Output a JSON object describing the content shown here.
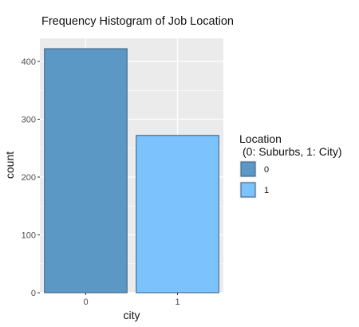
{
  "chart_data": {
    "type": "bar",
    "title": "Frequency Histogram of Job Location",
    "xlabel": "city",
    "ylabel": "count",
    "categories": [
      "0",
      "1"
    ],
    "values": [
      422,
      272
    ],
    "ylim": [
      0,
      440
    ],
    "yticks": [
      0,
      100,
      200,
      300,
      400
    ],
    "grid": true,
    "legend": {
      "position": "right",
      "title_line1": "Location",
      "title_line2": "(0: Suburbs, 1: City)",
      "entries": [
        {
          "label": "0",
          "color": "#5b98c6"
        },
        {
          "label": "1",
          "color": "#7cc3fd"
        }
      ]
    },
    "colors": {
      "panel_background": "#ebebeb",
      "gridline": "#ffffff",
      "bar_outline": "#3d6585"
    }
  }
}
